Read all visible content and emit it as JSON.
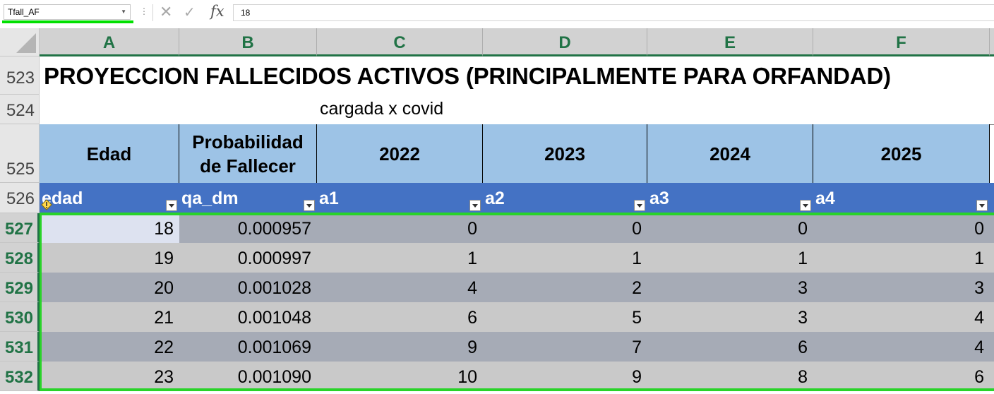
{
  "formula_bar": {
    "name_box": "Tfall_AF",
    "cancel_glyph": "✕",
    "enter_glyph": "✓",
    "fx_label": "fx",
    "formula_value": "18"
  },
  "columns": [
    "A",
    "B",
    "C",
    "D",
    "E",
    "F"
  ],
  "rows": {
    "r523": "523",
    "r524": "524",
    "r525": "525",
    "r526": "526",
    "data": [
      "527",
      "528",
      "529",
      "530",
      "531",
      "532"
    ]
  },
  "sheet": {
    "title": "PROYECCION FALLECIDOS ACTIVOS  (PRINCIPALMENTE PARA ORFANDAD)",
    "subtitle": "cargada x covid",
    "band_headers": [
      "Edad",
      "Probabilidad de Fallecer",
      "2022",
      "2023",
      "2024",
      "2025"
    ],
    "table_headers": [
      "edad",
      "qa_dm",
      "a1",
      "a2",
      "a3",
      "a4"
    ],
    "table_rows": [
      [
        "18",
        "0.000957",
        "0",
        "0",
        "0",
        "0"
      ],
      [
        "19",
        "0.000997",
        "1",
        "1",
        "1",
        "1"
      ],
      [
        "20",
        "0.001028",
        "4",
        "2",
        "3",
        "3"
      ],
      [
        "21",
        "0.001048",
        "6",
        "5",
        "3",
        "4"
      ],
      [
        "22",
        "0.001069",
        "9",
        "7",
        "6",
        "4"
      ],
      [
        "23",
        "0.001090",
        "10",
        "9",
        "8",
        "6"
      ]
    ]
  },
  "colors": {
    "accent_green": "#217346",
    "selection_green": "#29d329",
    "band_blue": "#9dc3e6",
    "table_header_blue": "#4472c4"
  }
}
